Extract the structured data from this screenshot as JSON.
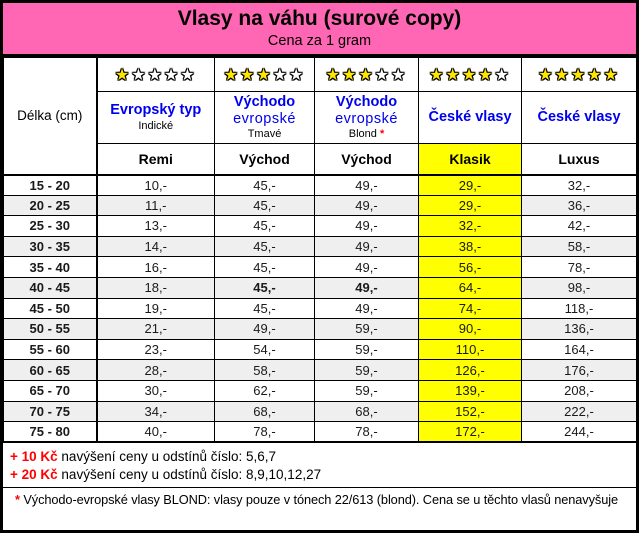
{
  "title": "Vlasy na váhu (surové copy)",
  "subtitle": "Cena za 1 gram",
  "length_header": "Délka (cm)",
  "rating_max": 5,
  "columns": [
    {
      "rating": 1,
      "name": "Evropský typ",
      "name2": "",
      "variant": "Indické",
      "variant_mark": "",
      "type": "Remi",
      "highlight": false
    },
    {
      "rating": 3,
      "name": "Východo",
      "name2": "evropské",
      "variant": "Tmavé",
      "variant_mark": "",
      "type": "Východ",
      "highlight": false
    },
    {
      "rating": 3,
      "name": "Východo",
      "name2": "evropské",
      "variant": "Blond",
      "variant_mark": " *",
      "type": "Východ",
      "highlight": false
    },
    {
      "rating": 4,
      "name": "České vlasy",
      "name2": "",
      "variant": "",
      "variant_mark": "",
      "type": "Klasik",
      "highlight": true
    },
    {
      "rating": 5,
      "name": "České vlasy",
      "name2": "",
      "variant": "",
      "variant_mark": "",
      "type": "Luxus",
      "highlight": false
    }
  ],
  "rows": [
    {
      "length": "15 - 20",
      "prices": [
        "10,-",
        "45,-",
        "49,-",
        "29,-",
        "32,-"
      ],
      "bold_indexes": []
    },
    {
      "length": "20 - 25",
      "prices": [
        "11,-",
        "45,-",
        "49,-",
        "29,-",
        "36,-"
      ],
      "bold_indexes": []
    },
    {
      "length": "25 - 30",
      "prices": [
        "13,-",
        "45,-",
        "49,-",
        "32,-",
        "42,-"
      ],
      "bold_indexes": []
    },
    {
      "length": "30 - 35",
      "prices": [
        "14,-",
        "45,-",
        "49,-",
        "38,-",
        "58,-"
      ],
      "bold_indexes": []
    },
    {
      "length": "35 - 40",
      "prices": [
        "16,-",
        "45,-",
        "49,-",
        "56,-",
        "78,-"
      ],
      "bold_indexes": []
    },
    {
      "length": "40 - 45",
      "prices": [
        "18,-",
        "45,-",
        "49,-",
        "64,-",
        "98,-"
      ],
      "bold_indexes": [
        1,
        2
      ]
    },
    {
      "length": "45 - 50",
      "prices": [
        "19,-",
        "45,-",
        "49,-",
        "74,-",
        "118,-"
      ],
      "bold_indexes": []
    },
    {
      "length": "50 - 55",
      "prices": [
        "21,-",
        "49,-",
        "59,-",
        "90,-",
        "136,-"
      ],
      "bold_indexes": []
    },
    {
      "length": "55 - 60",
      "prices": [
        "23,-",
        "54,-",
        "59,-",
        "110,-",
        "164,-"
      ],
      "bold_indexes": []
    },
    {
      "length": "60 - 65",
      "prices": [
        "28,-",
        "58,-",
        "59,-",
        "126,-",
        "176,-"
      ],
      "bold_indexes": []
    },
    {
      "length": "65 - 70",
      "prices": [
        "30,-",
        "62,-",
        "59,-",
        "139,-",
        "208,-"
      ],
      "bold_indexes": []
    },
    {
      "length": "70 - 75",
      "prices": [
        "34,-",
        "68,-",
        "68,-",
        "152,-",
        "222,-"
      ],
      "bold_indexes": []
    },
    {
      "length": "75 - 80",
      "prices": [
        "40,-",
        "78,-",
        "78,-",
        "172,-",
        "244,-"
      ],
      "bold_indexes": []
    }
  ],
  "notes": [
    {
      "prefix": "+ 10 Kč",
      "text": "navýšení ceny u odstínů číslo: 5,6,7"
    },
    {
      "prefix": "+ 20 Kč",
      "text": "navýšení ceny u odstínů číslo: 8,9,10,12,27"
    }
  ],
  "footnote": {
    "prefix": "*",
    "text": " Východo-evropské vlasy BLOND: vlasy pouze v tónech 22/613 (blond). Cena se u těchto vlasů nenavyšuje"
  },
  "colors": {
    "header_pink": "#ff66b3",
    "highlight_yellow": "#ffff00",
    "star_yellow": "#ffe600",
    "band_gray": "#efefef",
    "header_blue": "#0000ee",
    "note_red": "#ff0000"
  }
}
